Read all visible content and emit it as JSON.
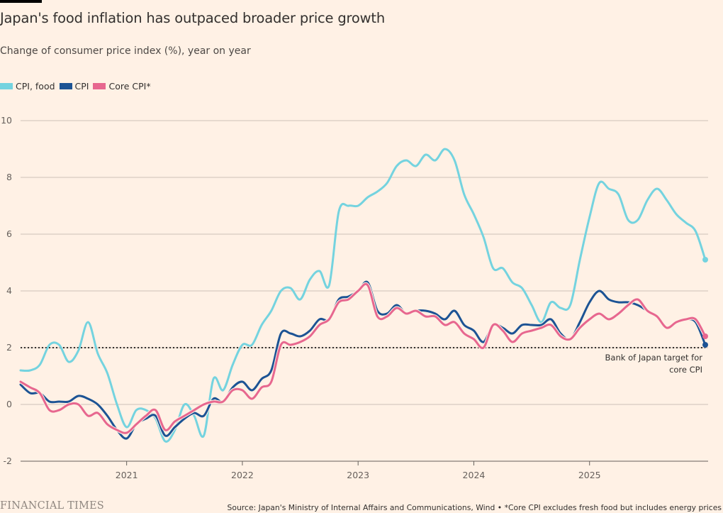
{
  "header": {
    "title": "Japan's food inflation has outpaced broader price growth",
    "subtitle": "Change of consumer price index (%), year on year"
  },
  "legend": [
    {
      "label": "CPI, food",
      "color": "#74d3df"
    },
    {
      "label": "CPI",
      "color": "#1c5394"
    },
    {
      "label": "Core CPI*",
      "color": "#e7678f"
    }
  ],
  "footer": {
    "brand": "FINANCIAL TIMES",
    "source": "Source: Japan's Ministry of Internal Affairs and Communications, Wind • *Core CPI excludes fresh food but includes energy prices"
  },
  "chart_data": {
    "type": "line",
    "title": "Japan's food inflation has outpaced broader price growth",
    "subtitle": "Change of consumer price index (%), year on year",
    "xlabel": "",
    "ylabel": "",
    "x_start": "2020-01",
    "x_end": "2025-12",
    "x_frequency": "monthly",
    "x_ticks": [
      "2021",
      "2022",
      "2023",
      "2024",
      "2025"
    ],
    "ylim": [
      -2,
      10
    ],
    "y_ticks": [
      -2,
      0,
      2,
      4,
      6,
      8,
      10
    ],
    "grid": true,
    "legend_position": "top-left",
    "series": [
      {
        "name": "CPI, food",
        "color": "#74d3df",
        "values": [
          1.2,
          1.2,
          1.4,
          2.1,
          2.1,
          1.5,
          1.9,
          2.9,
          1.8,
          1.1,
          0.0,
          -0.8,
          -0.2,
          -0.2,
          -0.5,
          -1.3,
          -0.9,
          0.0,
          -0.4,
          -1.1,
          0.9,
          0.5,
          1.4,
          2.1,
          2.1,
          2.8,
          3.3,
          4.0,
          4.1,
          3.7,
          4.4,
          4.7,
          4.2,
          6.8,
          7.0,
          7.0,
          7.3,
          7.5,
          7.8,
          8.4,
          8.6,
          8.4,
          8.8,
          8.6,
          9.0,
          8.6,
          7.4,
          6.7,
          5.9,
          4.8,
          4.8,
          4.3,
          4.1,
          3.5,
          2.9,
          3.6,
          3.4,
          3.5,
          5.1,
          6.6,
          7.8,
          7.6,
          7.4,
          6.5,
          6.5,
          7.2,
          7.6,
          7.2,
          6.7,
          6.4,
          6.1,
          5.1
        ]
      },
      {
        "name": "CPI",
        "color": "#1c5394",
        "values": [
          0.7,
          0.4,
          0.4,
          0.1,
          0.1,
          0.1,
          0.3,
          0.2,
          0.0,
          -0.4,
          -0.9,
          -1.2,
          -0.7,
          -0.5,
          -0.4,
          -1.1,
          -0.8,
          -0.5,
          -0.3,
          -0.4,
          0.2,
          0.1,
          0.6,
          0.8,
          0.5,
          0.9,
          1.2,
          2.5,
          2.5,
          2.4,
          2.6,
          3.0,
          3.0,
          3.7,
          3.8,
          4.0,
          4.3,
          3.3,
          3.2,
          3.5,
          3.2,
          3.3,
          3.3,
          3.2,
          3.0,
          3.3,
          2.8,
          2.6,
          2.2,
          2.8,
          2.7,
          2.5,
          2.8,
          2.8,
          2.8,
          3.0,
          2.5,
          2.3,
          2.9,
          3.6,
          4.0,
          3.7,
          3.6,
          3.6,
          3.5,
          3.3,
          3.1,
          2.7,
          2.9,
          3.0,
          2.9,
          2.1
        ]
      },
      {
        "name": "Core CPI*",
        "color": "#e7678f",
        "values": [
          0.8,
          0.6,
          0.4,
          -0.2,
          -0.2,
          0.0,
          0.0,
          -0.4,
          -0.3,
          -0.7,
          -0.9,
          -1.0,
          -0.7,
          -0.4,
          -0.2,
          -0.9,
          -0.6,
          -0.4,
          -0.2,
          0.0,
          0.1,
          0.1,
          0.5,
          0.5,
          0.2,
          0.6,
          0.8,
          2.1,
          2.1,
          2.2,
          2.4,
          2.8,
          3.0,
          3.6,
          3.7,
          4.0,
          4.2,
          3.1,
          3.1,
          3.4,
          3.2,
          3.3,
          3.1,
          3.1,
          2.8,
          2.9,
          2.5,
          2.3,
          2.0,
          2.8,
          2.6,
          2.2,
          2.5,
          2.6,
          2.7,
          2.8,
          2.4,
          2.3,
          2.7,
          3.0,
          3.2,
          3.0,
          3.2,
          3.5,
          3.7,
          3.3,
          3.1,
          2.7,
          2.9,
          3.0,
          3.0,
          2.4
        ]
      }
    ],
    "reference_line": {
      "value": 2,
      "style": "dotted",
      "label_lines": [
        "Bank of Japan target for",
        "core CPI"
      ]
    },
    "end_markers": true
  }
}
